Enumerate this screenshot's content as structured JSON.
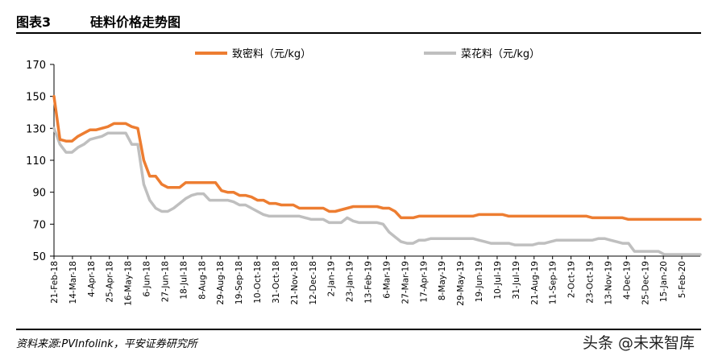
{
  "header": {
    "figure_number": "图表3",
    "title": "硅料价格走势图"
  },
  "footer": {
    "source": "资料来源:PVInfolink，平安证券研究所",
    "watermark": "头条 @未来智库"
  },
  "colors": {
    "series1": "#ED7D31",
    "series2": "#BFBFBF",
    "axis": "#000000"
  },
  "chart_data": {
    "type": "line",
    "title": "",
    "xlabel": "",
    "ylabel": "",
    "ylim": [
      50,
      170
    ],
    "yticks": [
      50,
      70,
      90,
      110,
      130,
      150,
      170
    ],
    "grid": false,
    "legend": "top",
    "x_tick_labels": [
      "21-Feb-18",
      "14-Mar-18",
      "4-Apr-18",
      "25-Apr-18",
      "16-May-18",
      "6-Jun-18",
      "27-Jun-18",
      "18-Jul-18",
      "8-Aug-18",
      "29-Aug-18",
      "19-Sep-18",
      "10-Oct-18",
      "31-Oct-18",
      "21-Nov-18",
      "12-Dec-18",
      "2-Jan-19",
      "23-Jan-19",
      "13-Feb-19",
      "6-Mar-19",
      "27-Mar-19",
      "17-Apr-19",
      "8-May-19",
      "29-May-19",
      "19-Jun-19",
      "10-Jul-19",
      "31-Jul-19",
      "21-Aug-19",
      "11-Sep-19",
      "2-Oct-19",
      "23-Oct-19",
      "13-Nov-19",
      "4-Dec-19",
      "25-Dec-19",
      "15-Jan-20",
      "5-Feb-20"
    ],
    "series": [
      {
        "name": "致密料（元/kg）",
        "values": [
          150,
          123,
          122,
          122,
          125,
          127,
          129,
          129,
          130,
          131,
          133,
          133,
          133,
          131,
          130,
          110,
          100,
          100,
          95,
          93,
          93,
          93,
          96,
          96,
          96,
          96,
          96,
          96,
          91,
          90,
          90,
          88,
          88,
          87,
          85,
          85,
          83,
          83,
          82,
          82,
          82,
          80,
          80,
          80,
          80,
          80,
          78,
          78,
          79,
          80,
          81,
          81,
          81,
          81,
          81,
          80,
          80,
          78,
          74,
          74,
          74,
          75,
          75,
          75,
          75,
          75,
          75,
          75,
          75,
          75,
          75,
          76,
          76,
          76,
          76,
          76,
          75,
          75,
          75,
          75,
          75,
          75,
          75,
          75,
          75,
          75,
          75,
          75,
          75,
          75,
          74,
          74,
          74,
          74,
          74,
          74,
          73,
          73,
          73,
          73,
          73,
          73,
          73,
          73,
          73,
          73,
          73,
          73,
          73
        ]
      },
      {
        "name": "菜花料（元/kg）",
        "values": [
          130,
          120,
          115,
          115,
          118,
          120,
          123,
          124,
          125,
          127,
          127,
          127,
          127,
          120,
          120,
          95,
          85,
          80,
          78,
          78,
          80,
          83,
          86,
          88,
          89,
          89,
          85,
          85,
          85,
          85,
          84,
          82,
          82,
          80,
          78,
          76,
          75,
          75,
          75,
          75,
          75,
          75,
          74,
          73,
          73,
          73,
          71,
          71,
          71,
          74,
          72,
          71,
          71,
          71,
          71,
          70,
          65,
          62,
          59,
          58,
          58,
          60,
          60,
          61,
          61,
          61,
          61,
          61,
          61,
          61,
          61,
          60,
          59,
          58,
          58,
          58,
          58,
          57,
          57,
          57,
          57,
          58,
          58,
          59,
          60,
          60,
          60,
          60,
          60,
          60,
          60,
          61,
          61,
          60,
          59,
          58,
          58,
          53,
          53,
          53,
          53,
          53,
          51,
          51,
          51,
          51,
          51,
          51,
          51
        ]
      }
    ]
  }
}
